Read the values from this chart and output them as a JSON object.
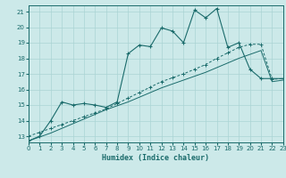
{
  "xlabel": "Humidex (Indice chaleur)",
  "bg_color": "#cce9e9",
  "grid_color": "#aad4d4",
  "line_color": "#1a6b6b",
  "xlim": [
    0,
    23
  ],
  "ylim": [
    12.6,
    21.4
  ],
  "xticks": [
    0,
    1,
    2,
    3,
    4,
    5,
    6,
    7,
    8,
    9,
    10,
    11,
    12,
    13,
    14,
    15,
    16,
    17,
    18,
    19,
    20,
    21,
    22,
    23
  ],
  "yticks": [
    13,
    14,
    15,
    16,
    17,
    18,
    19,
    20,
    21
  ],
  "line1_x": [
    0,
    1,
    2,
    3,
    4,
    5,
    6,
    7,
    8,
    9,
    10,
    11,
    12,
    13,
    14,
    15,
    16,
    17,
    18,
    19,
    20,
    21,
    22,
    23
  ],
  "line1_y": [
    12.7,
    13.0,
    14.0,
    15.2,
    15.0,
    15.1,
    15.0,
    14.85,
    15.2,
    18.3,
    18.85,
    18.75,
    19.95,
    19.75,
    19.0,
    21.1,
    20.6,
    21.2,
    18.7,
    19.0,
    17.3,
    16.7,
    16.7,
    16.7
  ],
  "line2_x": [
    0,
    1,
    2,
    3,
    4,
    5,
    6,
    7,
    8,
    9,
    10,
    11,
    12,
    13,
    14,
    15,
    16,
    17,
    18,
    19,
    20,
    21,
    22,
    23
  ],
  "line2_y": [
    13.0,
    13.25,
    13.5,
    13.75,
    14.0,
    14.25,
    14.5,
    14.75,
    15.1,
    15.45,
    15.8,
    16.15,
    16.5,
    16.75,
    17.0,
    17.3,
    17.6,
    18.0,
    18.35,
    18.7,
    18.9,
    18.9,
    16.65,
    16.7
  ],
  "line3_x": [
    0,
    1,
    2,
    3,
    4,
    5,
    6,
    7,
    8,
    9,
    10,
    11,
    12,
    13,
    14,
    15,
    16,
    17,
    18,
    19,
    20,
    21,
    22,
    23
  ],
  "line3_y": [
    12.7,
    12.95,
    13.2,
    13.5,
    13.8,
    14.1,
    14.4,
    14.7,
    14.95,
    15.2,
    15.5,
    15.8,
    16.1,
    16.35,
    16.6,
    16.85,
    17.1,
    17.4,
    17.7,
    18.0,
    18.25,
    18.5,
    16.5,
    16.6
  ]
}
